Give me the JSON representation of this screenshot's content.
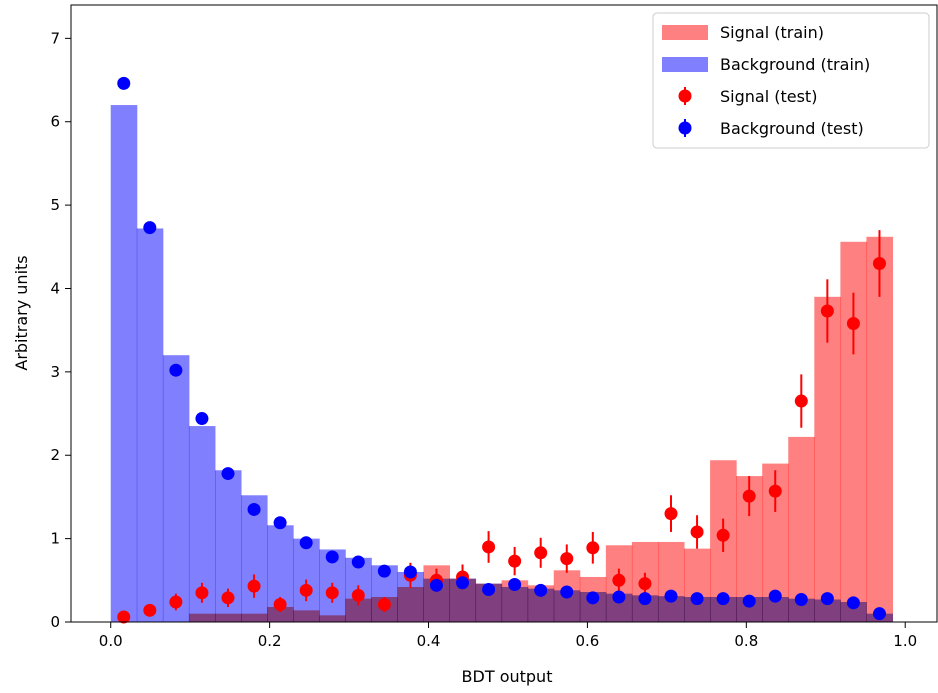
{
  "chart_data": {
    "type": "bar",
    "xlabel": "BDT output",
    "ylabel": "Arbitrary units",
    "xlim": [
      -0.05,
      1.04
    ],
    "ylim": [
      0,
      7.4
    ],
    "xticks": [
      "0.0",
      "0.2",
      "0.4",
      "0.6",
      "0.8",
      "1.0"
    ],
    "yticks": [
      "0",
      "1",
      "2",
      "3",
      "4",
      "5",
      "6",
      "7"
    ],
    "legend_position": "top-right",
    "bin_edges": [
      0.0,
      0.0328,
      0.0656,
      0.0984,
      0.1312,
      0.164,
      0.1968,
      0.2296,
      0.2624,
      0.2952,
      0.328,
      0.3608,
      0.3936,
      0.4264,
      0.4592,
      0.492,
      0.5248,
      0.5576,
      0.5904,
      0.6232,
      0.656,
      0.6888,
      0.7216,
      0.7544,
      0.7872,
      0.82,
      0.8528,
      0.8856,
      0.9184,
      0.9512,
      0.984
    ],
    "series": [
      {
        "name": "Signal (train)",
        "kind": "histogram",
        "color": "#ff8080",
        "values": [
          0.0,
          0.0,
          0.0,
          0.1,
          0.1,
          0.1,
          0.18,
          0.14,
          0.08,
          0.28,
          0.3,
          0.42,
          0.68,
          0.52,
          0.46,
          0.5,
          0.44,
          0.62,
          0.54,
          0.92,
          0.96,
          0.96,
          0.88,
          1.94,
          1.75,
          1.9,
          2.22,
          3.9,
          4.56,
          4.62
        ]
      },
      {
        "name": "Background (train)",
        "kind": "histogram",
        "color": "#8080ff",
        "values": [
          6.2,
          4.72,
          3.2,
          2.35,
          1.82,
          1.52,
          1.16,
          1.0,
          0.87,
          0.77,
          0.68,
          0.6,
          0.52,
          0.52,
          0.46,
          0.42,
          0.4,
          0.38,
          0.36,
          0.34,
          0.32,
          0.31,
          0.3,
          0.3,
          0.3,
          0.3,
          0.28,
          0.27,
          0.24,
          0.1
        ]
      },
      {
        "name": "Signal (test)",
        "kind": "errorbar",
        "color": "#ff0000",
        "values": [
          0.06,
          0.14,
          0.24,
          0.35,
          0.29,
          0.43,
          0.21,
          0.38,
          0.35,
          0.32,
          0.21,
          0.56,
          0.5,
          0.54,
          0.9,
          0.73,
          0.83,
          0.76,
          0.89,
          0.5,
          0.46,
          1.3,
          1.08,
          1.04,
          1.51,
          1.57,
          2.65,
          3.73,
          3.58,
          4.3
        ],
        "errors": [
          0.05,
          0.07,
          0.1,
          0.12,
          0.11,
          0.14,
          0.09,
          0.13,
          0.12,
          0.12,
          0.09,
          0.15,
          0.14,
          0.15,
          0.19,
          0.17,
          0.18,
          0.17,
          0.19,
          0.14,
          0.13,
          0.22,
          0.2,
          0.2,
          0.24,
          0.25,
          0.32,
          0.38,
          0.37,
          0.4
        ]
      },
      {
        "name": "Background (test)",
        "kind": "errorbar",
        "color": "#0000ff",
        "values": [
          6.46,
          4.73,
          3.02,
          2.44,
          1.78,
          1.35,
          1.19,
          0.95,
          0.78,
          0.72,
          0.61,
          0.6,
          0.44,
          0.47,
          0.39,
          0.45,
          0.38,
          0.36,
          0.29,
          0.3,
          0.28,
          0.31,
          0.28,
          0.28,
          0.25,
          0.31,
          0.27,
          0.28,
          0.23,
          0.1
        ]
      }
    ]
  }
}
